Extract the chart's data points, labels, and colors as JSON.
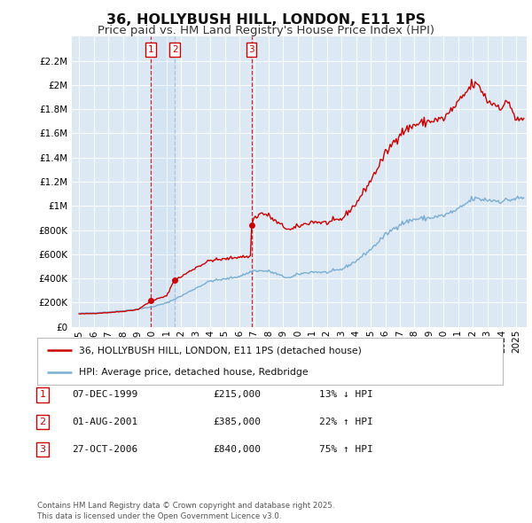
{
  "title": "36, HOLLYBUSH HILL, LONDON, E11 1PS",
  "subtitle": "Price paid vs. HM Land Registry's House Price Index (HPI)",
  "title_fontsize": 11.5,
  "subtitle_fontsize": 9.5,
  "bg_color": "#dce9f5",
  "fig_bg_color": "#ffffff",
  "ylim": [
    0,
    2400000
  ],
  "yticks": [
    0,
    200000,
    400000,
    600000,
    800000,
    1000000,
    1200000,
    1400000,
    1600000,
    1800000,
    2000000,
    2200000
  ],
  "ytick_labels": [
    "£0",
    "£200K",
    "£400K",
    "£600K",
    "£800K",
    "£1M",
    "£1.2M",
    "£1.4M",
    "£1.6M",
    "£1.8M",
    "£2M",
    "£2.2M"
  ],
  "xlim_start": 1994.5,
  "xlim_end": 2025.7,
  "xtick_years": [
    1995,
    1996,
    1997,
    1998,
    1999,
    2000,
    2001,
    2002,
    2003,
    2004,
    2005,
    2006,
    2007,
    2008,
    2009,
    2010,
    2011,
    2012,
    2013,
    2014,
    2015,
    2016,
    2017,
    2018,
    2019,
    2020,
    2021,
    2022,
    2023,
    2024,
    2025
  ],
  "red_line_color": "#cc0000",
  "blue_line_color": "#7aadd4",
  "transactions": [
    {
      "num": 1,
      "date": "07-DEC-1999",
      "year": 1999.92,
      "price": 215000,
      "pct": "13%",
      "dir": "↓"
    },
    {
      "num": 2,
      "date": "01-AUG-2001",
      "year": 2001.58,
      "price": 385000,
      "pct": "22%",
      "dir": "↑"
    },
    {
      "num": 3,
      "date": "27-OCT-2006",
      "year": 2006.82,
      "price": 840000,
      "pct": "75%",
      "dir": "↑"
    }
  ],
  "legend_label_red": "36, HOLLYBUSH HILL, LONDON, E11 1PS (detached house)",
  "legend_label_blue": "HPI: Average price, detached house, Redbridge",
  "footer": "Contains HM Land Registry data © Crown copyright and database right 2025.\nThis data is licensed under the Open Government Licence v3.0.",
  "table_rows": [
    {
      "num": 1,
      "date": "07-DEC-1999",
      "price": "£215,000",
      "hpi": "13% ↓ HPI"
    },
    {
      "num": 2,
      "date": "01-AUG-2001",
      "price": "£385,000",
      "hpi": "22% ↑ HPI"
    },
    {
      "num": 3,
      "date": "27-OCT-2006",
      "price": "£840,000",
      "hpi": "75% ↑ HPI"
    }
  ]
}
